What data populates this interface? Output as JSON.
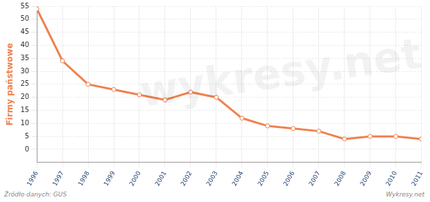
{
  "chart_data": {
    "type": "line",
    "y_label": "Firmy państwowe",
    "source": "Źródło danych: GUS",
    "credit": "Wykresy.net",
    "watermark": "wykresy.net",
    "categories": [
      "1996",
      "1997",
      "1998",
      "1999",
      "2000",
      "2001",
      "2002",
      "2003",
      "2004",
      "2005",
      "2006",
      "2007",
      "2008",
      "2009",
      "2010",
      "2011"
    ],
    "values": [
      54,
      34,
      25,
      23,
      21,
      19,
      22,
      20,
      12,
      9,
      8,
      7,
      4,
      5,
      5,
      4
    ],
    "color": "#f0814e",
    "marker": "circle",
    "ylim": [
      -5,
      55
    ],
    "yticks": [
      0,
      5,
      10,
      15,
      20,
      25,
      30,
      35,
      40,
      45,
      50,
      55
    ],
    "grid": true
  }
}
